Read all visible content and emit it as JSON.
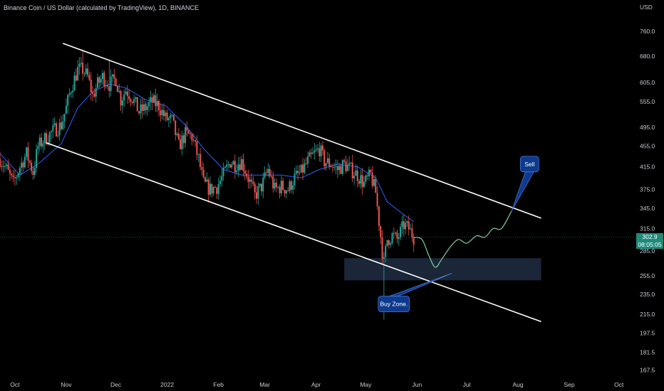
{
  "header": {
    "title": "Binance Coin / US Dollar (calculated by TradingView), 1D, BINANCE"
  },
  "price_panel": {
    "currency": "USD",
    "current_price": "302.9",
    "countdown": "08:05:05"
  },
  "colors": {
    "background": "#000000",
    "candle_up": "#26a69a",
    "candle_down": "#ef5350",
    "moving_average": "#2962ff",
    "channel_lines": "#ffffff",
    "projection": "#7fcf9c",
    "buy_zone": "#1b2638",
    "callout": "#0d3a8c",
    "current_price_line": "#1f8a7a"
  },
  "chart_data": {
    "type": "line",
    "y_axis": {
      "scale": "log",
      "ticks": [
        "760.0",
        "680.0",
        "605.0",
        "555.0",
        "495.0",
        "455.0",
        "415.0",
        "375.0",
        "345.0",
        "315.0",
        "285.0",
        "255.0",
        "235.0",
        "215.0",
        "197.5",
        "181.5",
        "167.5"
      ],
      "range": [
        160,
        820
      ]
    },
    "x_axis": {
      "ticks": [
        "Oct",
        "Nov",
        "Dec",
        "2022",
        "Feb",
        "Mar",
        "Apr",
        "May",
        "Jun",
        "Jul",
        "Aug",
        "Sep",
        "Oct"
      ],
      "range": [
        "2021-09-22",
        "2022-10-08"
      ]
    },
    "price_path": [
      [
        "2021-09-22",
        430
      ],
      [
        "2021-09-26",
        410
      ],
      [
        "2021-09-30",
        385
      ],
      [
        "2021-10-04",
        415
      ],
      [
        "2021-10-08",
        440
      ],
      [
        "2021-10-12",
        405
      ],
      [
        "2021-10-15",
        455
      ],
      [
        "2021-10-19",
        470
      ],
      [
        "2021-10-22",
        480
      ],
      [
        "2021-10-25",
        490
      ],
      [
        "2021-10-29",
        500
      ],
      [
        "2021-11-01",
        540
      ],
      [
        "2021-11-04",
        590
      ],
      [
        "2021-11-08",
        640
      ],
      [
        "2021-11-11",
        640
      ],
      [
        "2021-11-14",
        620
      ],
      [
        "2021-11-17",
        570
      ],
      [
        "2021-11-20",
        600
      ],
      [
        "2021-11-23",
        620
      ],
      [
        "2021-11-27",
        600
      ],
      [
        "2021-12-01",
        615
      ],
      [
        "2021-12-04",
        560
      ],
      [
        "2021-12-07",
        585
      ],
      [
        "2021-12-11",
        565
      ],
      [
        "2021-12-15",
        530
      ],
      [
        "2021-12-19",
        540
      ],
      [
        "2021-12-23",
        555
      ],
      [
        "2021-12-27",
        545
      ],
      [
        "2021-12-31",
        515
      ],
      [
        "2022-01-04",
        510
      ],
      [
        "2022-01-08",
        455
      ],
      [
        "2022-01-12",
        480
      ],
      [
        "2022-01-16",
        475
      ],
      [
        "2022-01-20",
        430
      ],
      [
        "2022-01-23",
        385
      ],
      [
        "2022-01-27",
        375
      ],
      [
        "2022-01-31",
        380
      ],
      [
        "2022-02-04",
        400
      ],
      [
        "2022-02-08",
        425
      ],
      [
        "2022-02-11",
        420
      ],
      [
        "2022-02-15",
        425
      ],
      [
        "2022-02-19",
        395
      ],
      [
        "2022-02-23",
        365
      ],
      [
        "2022-02-27",
        380
      ],
      [
        "2022-03-03",
        410
      ],
      [
        "2022-03-07",
        375
      ],
      [
        "2022-03-11",
        380
      ],
      [
        "2022-03-15",
        375
      ],
      [
        "2022-03-19",
        395
      ],
      [
        "2022-03-23",
        405
      ],
      [
        "2022-03-27",
        425
      ],
      [
        "2022-03-31",
        440
      ],
      [
        "2022-04-03",
        450
      ],
      [
        "2022-04-06",
        425
      ],
      [
        "2022-04-10",
        420
      ],
      [
        "2022-04-14",
        410
      ],
      [
        "2022-04-18",
        420
      ],
      [
        "2022-04-22",
        410
      ],
      [
        "2022-04-26",
        400
      ],
      [
        "2022-04-30",
        385
      ],
      [
        "2022-05-04",
        400
      ],
      [
        "2022-05-07",
        370
      ],
      [
        "2022-05-09",
        325
      ],
      [
        "2022-05-11",
        285
      ],
      [
        "2022-05-12",
        270
      ],
      [
        "2022-05-14",
        300
      ],
      [
        "2022-05-17",
        305
      ],
      [
        "2022-05-20",
        300
      ],
      [
        "2022-05-24",
        320
      ],
      [
        "2022-05-27",
        315
      ],
      [
        "2022-05-30",
        302.9
      ]
    ],
    "extreme_wicks": [
      [
        "2021-11-11",
        700
      ],
      [
        "2021-11-27",
        670
      ],
      [
        "2022-05-12",
        210
      ]
    ],
    "moving_average": [
      [
        "2021-09-22",
        440
      ],
      [
        "2021-10-04",
        400
      ],
      [
        "2021-10-15",
        420
      ],
      [
        "2021-10-29",
        460
      ],
      [
        "2021-11-08",
        540
      ],
      [
        "2021-11-17",
        580
      ],
      [
        "2021-11-27",
        600
      ],
      [
        "2021-12-07",
        590
      ],
      [
        "2021-12-19",
        560
      ],
      [
        "2021-12-31",
        545
      ],
      [
        "2022-01-12",
        500
      ],
      [
        "2022-01-23",
        450
      ],
      [
        "2022-02-04",
        410
      ],
      [
        "2022-02-15",
        400
      ],
      [
        "2022-02-27",
        400
      ],
      [
        "2022-03-11",
        400
      ],
      [
        "2022-03-23",
        395
      ],
      [
        "2022-04-03",
        410
      ],
      [
        "2022-04-14",
        420
      ],
      [
        "2022-04-26",
        415
      ],
      [
        "2022-05-07",
        395
      ],
      [
        "2022-05-14",
        355
      ],
      [
        "2022-05-24",
        335
      ],
      [
        "2022-05-30",
        325
      ]
    ],
    "channel": {
      "upper": [
        [
          "2021-10-30",
          720
        ],
        [
          "2022-08-15",
          330
        ]
      ],
      "lower": [
        [
          "2021-10-20",
          462
        ],
        [
          "2022-08-15",
          208
        ]
      ]
    },
    "buy_zone": {
      "from": "2022-04-18",
      "to": "2022-08-15",
      "low": 250,
      "high": 276
    },
    "projection": [
      [
        "2022-05-30",
        302.9
      ],
      [
        "2022-06-04",
        300
      ],
      [
        "2022-06-08",
        280
      ],
      [
        "2022-06-12",
        265
      ],
      [
        "2022-06-16",
        275
      ],
      [
        "2022-06-21",
        290
      ],
      [
        "2022-06-26",
        300
      ],
      [
        "2022-07-01",
        295
      ],
      [
        "2022-07-07",
        305
      ],
      [
        "2022-07-12",
        303
      ],
      [
        "2022-07-17",
        315
      ],
      [
        "2022-07-22",
        315
      ],
      [
        "2022-07-28",
        340
      ]
    ],
    "annotations": [
      {
        "text": "Sell",
        "anchor": [
          "2022-07-28",
          340
        ],
        "box": [
          "2022-08-08",
          420
        ]
      },
      {
        "text": "Buy Zone.",
        "anchor": [
          "2022-06-22",
          258
        ],
        "box": [
          "2022-05-18",
          225
        ]
      }
    ]
  }
}
